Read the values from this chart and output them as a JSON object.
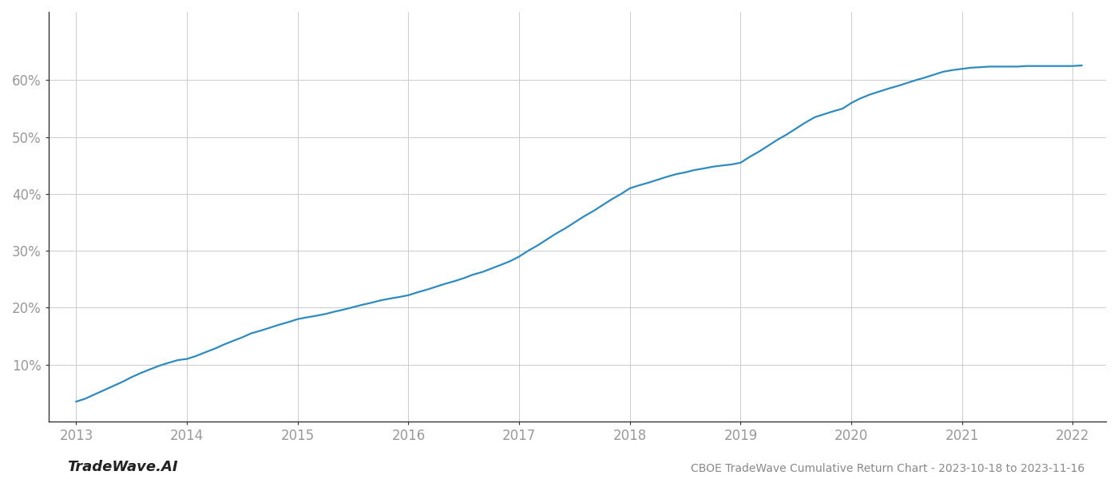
{
  "title": "CBOE TradeWave Cumulative Return Chart - 2023-10-18 to 2023-11-16",
  "watermark": "TradeWave.AI",
  "line_color": "#2e8bbf",
  "background_color": "#ffffff",
  "grid_color": "#cccccc",
  "x_values": [
    2013.0,
    2013.08,
    2013.17,
    2013.25,
    2013.33,
    2013.42,
    2013.5,
    2013.58,
    2013.67,
    2013.75,
    2013.83,
    2013.92,
    2014.0,
    2014.08,
    2014.17,
    2014.25,
    2014.33,
    2014.42,
    2014.5,
    2014.58,
    2014.67,
    2014.75,
    2014.83,
    2014.92,
    2015.0,
    2015.08,
    2015.17,
    2015.25,
    2015.33,
    2015.42,
    2015.5,
    2015.58,
    2015.67,
    2015.75,
    2015.83,
    2015.92,
    2016.0,
    2016.08,
    2016.17,
    2016.25,
    2016.33,
    2016.42,
    2016.5,
    2016.58,
    2016.67,
    2016.75,
    2016.83,
    2016.92,
    2017.0,
    2017.08,
    2017.17,
    2017.25,
    2017.33,
    2017.42,
    2017.5,
    2017.58,
    2017.67,
    2017.75,
    2017.83,
    2017.92,
    2018.0,
    2018.08,
    2018.17,
    2018.25,
    2018.33,
    2018.42,
    2018.5,
    2018.58,
    2018.67,
    2018.75,
    2018.83,
    2018.92,
    2019.0,
    2019.08,
    2019.17,
    2019.25,
    2019.33,
    2019.42,
    2019.5,
    2019.58,
    2019.67,
    2019.75,
    2019.83,
    2019.92,
    2020.0,
    2020.08,
    2020.17,
    2020.25,
    2020.33,
    2020.42,
    2020.5,
    2020.58,
    2020.67,
    2020.75,
    2020.83,
    2020.92,
    2021.0,
    2021.08,
    2021.17,
    2021.25,
    2021.33,
    2021.42,
    2021.5,
    2021.58,
    2021.67,
    2021.75,
    2021.83,
    2021.92,
    2022.0,
    2022.08
  ],
  "y_values": [
    3.5,
    4.0,
    4.8,
    5.5,
    6.2,
    7.0,
    7.8,
    8.5,
    9.2,
    9.8,
    10.3,
    10.8,
    11.0,
    11.5,
    12.2,
    12.8,
    13.5,
    14.2,
    14.8,
    15.5,
    16.0,
    16.5,
    17.0,
    17.5,
    18.0,
    18.3,
    18.6,
    18.9,
    19.3,
    19.7,
    20.1,
    20.5,
    20.9,
    21.3,
    21.6,
    21.9,
    22.2,
    22.7,
    23.2,
    23.7,
    24.2,
    24.7,
    25.2,
    25.8,
    26.3,
    26.9,
    27.5,
    28.2,
    29.0,
    30.0,
    31.0,
    32.0,
    33.0,
    34.0,
    35.0,
    36.0,
    37.0,
    38.0,
    39.0,
    40.0,
    41.0,
    41.5,
    42.0,
    42.5,
    43.0,
    43.5,
    43.8,
    44.2,
    44.5,
    44.8,
    45.0,
    45.2,
    45.5,
    46.5,
    47.5,
    48.5,
    49.5,
    50.5,
    51.5,
    52.5,
    53.5,
    54.0,
    54.5,
    55.0,
    56.0,
    56.8,
    57.5,
    58.0,
    58.5,
    59.0,
    59.5,
    60.0,
    60.5,
    61.0,
    61.5,
    61.8,
    62.0,
    62.2,
    62.3,
    62.4,
    62.4,
    62.4,
    62.4,
    62.5,
    62.5,
    62.5,
    62.5,
    62.5,
    62.5,
    62.6
  ],
  "xlim": [
    2012.75,
    2022.3
  ],
  "ylim": [
    0,
    72
  ],
  "yticks": [
    10,
    20,
    30,
    40,
    50,
    60
  ],
  "ytick_labels": [
    "10%",
    "20%",
    "30%",
    "40%",
    "50%",
    "60%"
  ],
  "xticks": [
    2013,
    2014,
    2015,
    2016,
    2017,
    2018,
    2019,
    2020,
    2021,
    2022
  ],
  "line_width": 1.6,
  "title_fontsize": 10,
  "tick_fontsize": 12,
  "watermark_fontsize": 13,
  "tick_color": "#999999",
  "spine_color": "#333333"
}
